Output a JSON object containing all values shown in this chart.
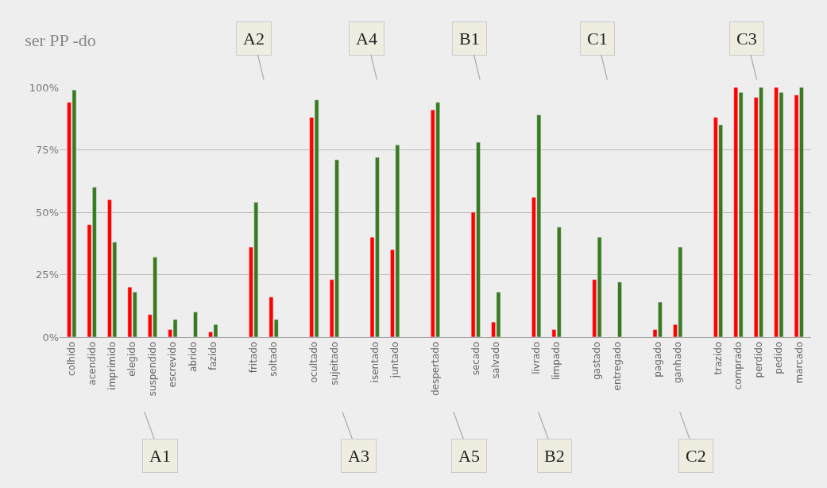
{
  "chart_data": {
    "type": "bar",
    "title": "ser PP -do",
    "categories": [
      "colhido",
      "acendido",
      "imprimido",
      "elegido",
      "suspendido",
      "escrevido",
      "abrido",
      "fazido",
      null,
      "fritado",
      "soltado",
      null,
      "ocultado",
      "sujeitado",
      null,
      "isentado",
      "juntado",
      null,
      "despertado",
      null,
      "secado",
      "salvado",
      null,
      "livrado",
      "limpado",
      null,
      "gastado",
      "entregado",
      null,
      "pagado",
      "ganhado",
      null,
      "trazido",
      "comprado",
      "perdido",
      "pedido",
      "marcado"
    ],
    "series": [
      {
        "color": "#ff0000",
        "values": [
          94,
          45,
          55,
          20,
          9,
          3,
          null,
          2,
          null,
          36,
          16,
          null,
          88,
          23,
          null,
          40,
          35,
          null,
          91,
          null,
          50,
          6,
          null,
          56,
          3,
          null,
          23,
          null,
          null,
          3,
          5,
          null,
          88,
          100,
          96,
          100,
          97
        ]
      },
      {
        "color": "#3a7a1f",
        "values": [
          99,
          60,
          38,
          18,
          32,
          7,
          10,
          5,
          null,
          54,
          7,
          null,
          95,
          71,
          null,
          72,
          77,
          null,
          94,
          null,
          78,
          18,
          null,
          89,
          44,
          null,
          40,
          22,
          null,
          14,
          36,
          null,
          85,
          98,
          100,
          98,
          100
        ]
      }
    ],
    "ylim": [
      0,
      100
    ],
    "yticks": [
      {
        "value": 0,
        "label": "0%"
      },
      {
        "value": 25,
        "label": "25%"
      },
      {
        "value": 50,
        "label": "50%"
      },
      {
        "value": 75,
        "label": "75%"
      },
      {
        "value": 100,
        "label": "100%"
      }
    ],
    "grid": "y",
    "legend": false,
    "annotations": [
      "A1",
      "A2",
      "A3",
      "A4",
      "A5",
      "B1",
      "B2",
      "C1",
      "C2",
      "C3"
    ]
  }
}
